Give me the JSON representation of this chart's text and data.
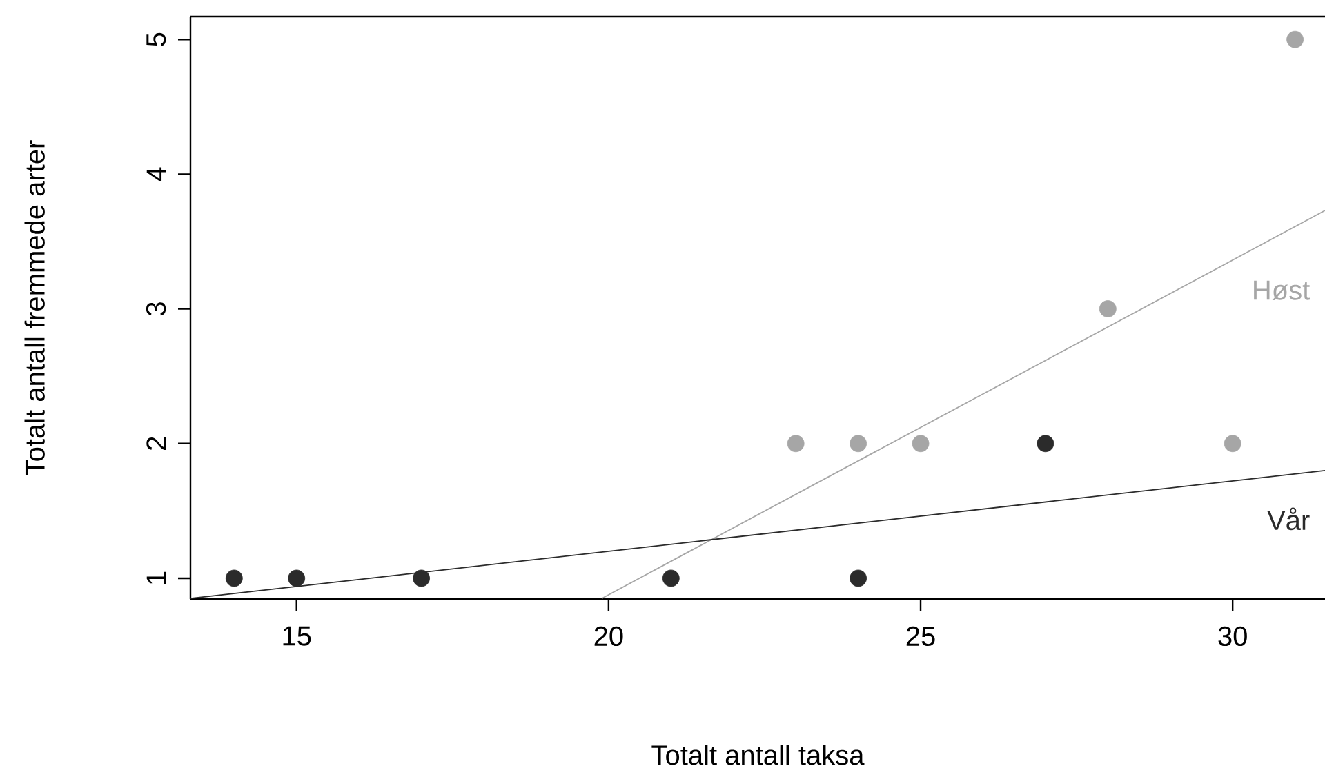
{
  "chart_data": {
    "type": "scatter",
    "xlabel": "Totalt antall taksa",
    "ylabel": "Totalt antall fremmede arter",
    "grid": false,
    "xlim": [
      13.3,
      31.48
    ],
    "ylim": [
      0.846,
      5.17
    ],
    "xticks": [
      15,
      20,
      25,
      30
    ],
    "yticks": [
      1,
      2,
      3,
      4,
      5
    ],
    "series": [
      {
        "marker": "circle",
        "color": "#a6a6a6",
        "x": [
          23,
          24,
          25,
          28,
          30,
          31
        ],
        "values": [
          2,
          2,
          2,
          3,
          2,
          5
        ]
      },
      {
        "marker": "circle",
        "color": "#2b2b2b",
        "x": [
          14,
          15,
          17,
          21,
          24,
          27
        ],
        "values": [
          1,
          1,
          1,
          1,
          1,
          2
        ]
      },
      {
        "type": "line",
        "marker": "none",
        "name": "Høst",
        "color": "#a6a6a6",
        "x": [
          19.89,
          31.48
        ],
        "values": [
          0.85,
          3.73
        ]
      },
      {
        "type": "line",
        "marker": "none",
        "name": "Vår",
        "color": "#2b2b2b",
        "x": [
          13.3,
          31.48
        ],
        "values": [
          0.85,
          1.8
        ]
      }
    ]
  }
}
